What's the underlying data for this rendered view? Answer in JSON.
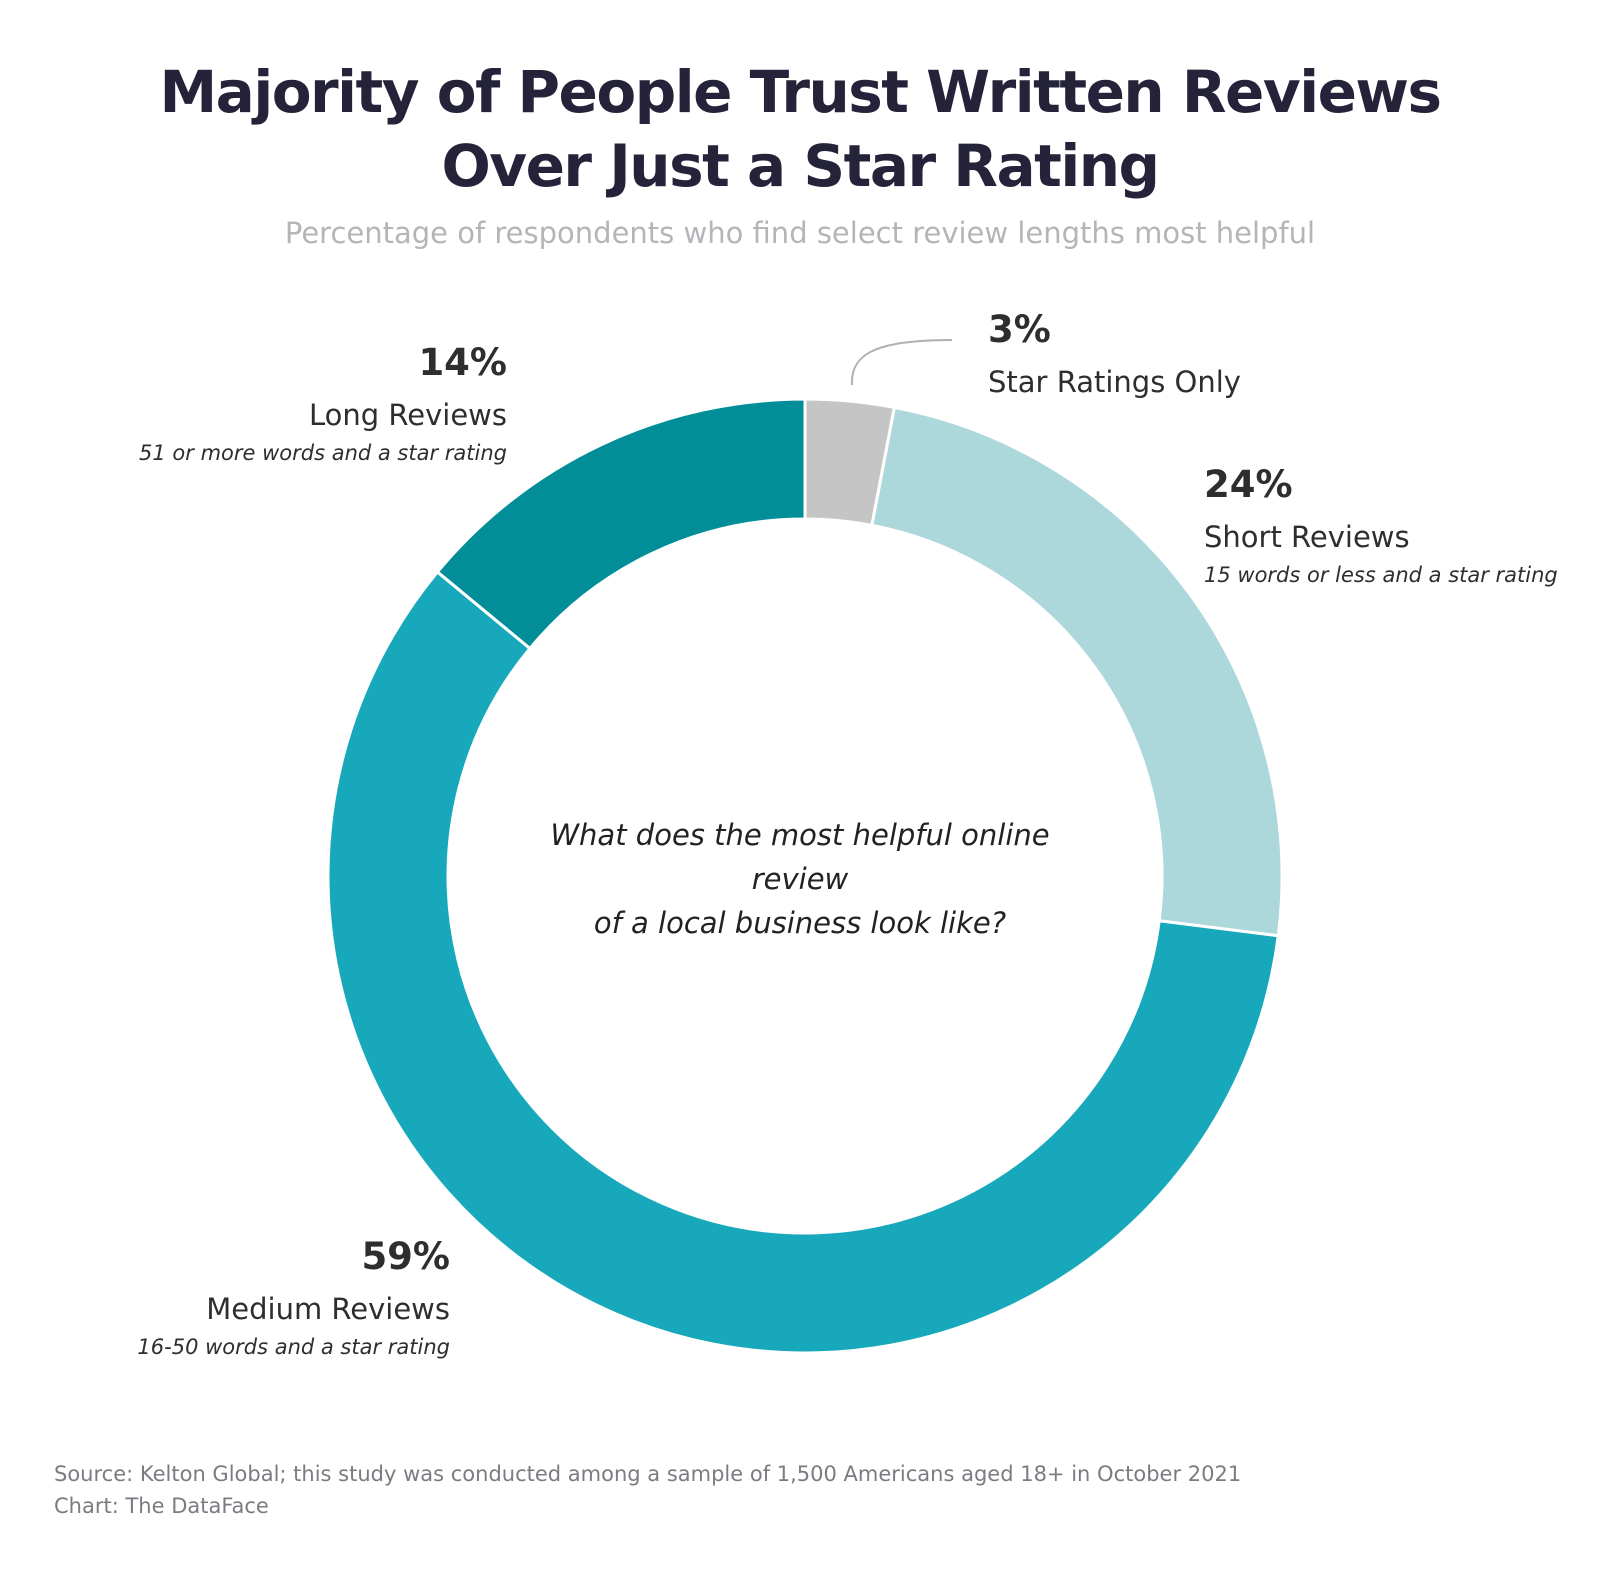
{
  "chart_data": {
    "type": "pie",
    "title": "Majority of People Trust Written Reviews Over Just a Star Rating",
    "title_lines": [
      "Majority of People Trust Written Reviews",
      "Over Just a Star Rating"
    ],
    "subtitle": "Percentage of respondents who find select review lengths most helpful",
    "center_text_lines": [
      "What does the most helpful online review",
      "of a local business look like?"
    ],
    "donut": true,
    "slices": [
      {
        "name": "Star Ratings Only",
        "value": 3,
        "label": "3%",
        "description": "",
        "color": "#c5c5c5"
      },
      {
        "name": "Short Reviews",
        "value": 24,
        "label": "24%",
        "description": "15 words or less and a star rating",
        "color": "#acd8db"
      },
      {
        "name": "Medium Reviews",
        "value": 59,
        "label": "59%",
        "description": "16-50 words and a star rating",
        "color": "#17a9bb"
      },
      {
        "name": "Long Reviews",
        "value": 14,
        "label": "14%",
        "description": "51 or more words and a star rating",
        "color": "#018e99"
      }
    ]
  },
  "footer": {
    "source": "Source: Kelton Global; this study was conducted among a sample of 1,500 Americans aged 18+ in October 2021",
    "credit": "Chart: The DataFace"
  }
}
